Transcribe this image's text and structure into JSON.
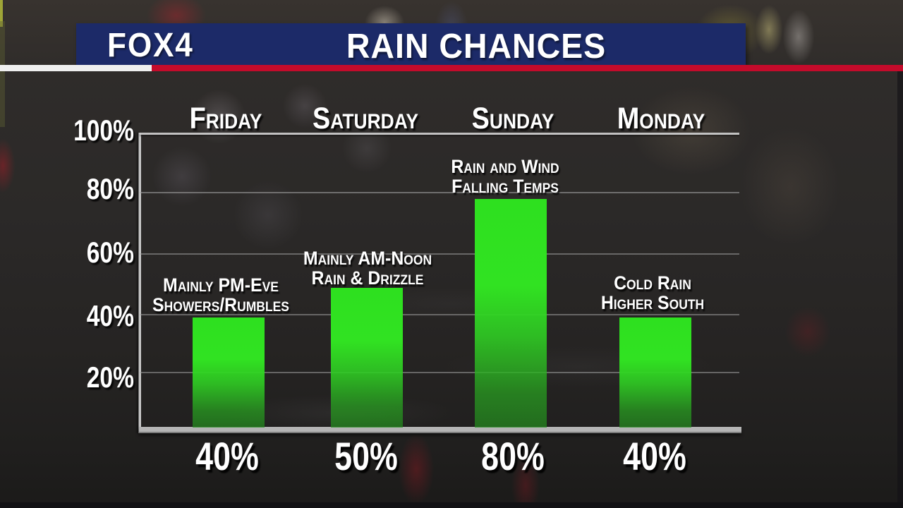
{
  "header": {
    "brand": "FOX4",
    "title": "RAIN CHANCES"
  },
  "colors": {
    "header_navy": "#1c2a68",
    "stripe_red": "#c40b2b",
    "stripe_white": "#efefef",
    "bar_green": "#2fe120",
    "grid_gray": "#b5b5b5",
    "text_white": "#ffffff"
  },
  "chart_data": {
    "type": "bar",
    "title": "RAIN CHANCES",
    "categories": [
      "Friday",
      "Saturday",
      "Sunday",
      "Monday"
    ],
    "values": [
      40,
      50,
      80,
      40
    ],
    "value_labels": [
      "40%",
      "50%",
      "80%",
      "40%"
    ],
    "annotations": [
      {
        "lines": [
          "Mainly PM-Eve",
          "Showers/Rumbles"
        ]
      },
      {
        "lines": [
          "Mainly AM-Noon",
          "Rain & Drizzle"
        ]
      },
      {
        "lines": [
          "Rain and Wind",
          "Falling Temps"
        ]
      },
      {
        "lines": [
          "Cold Rain",
          "Higher South"
        ]
      }
    ],
    "y_ticks": [
      "100%",
      "80%",
      "60%",
      "40%",
      "20%"
    ],
    "ylabel": "",
    "xlabel": "",
    "ylim": [
      0,
      100
    ],
    "grid": true,
    "legend": false
  }
}
